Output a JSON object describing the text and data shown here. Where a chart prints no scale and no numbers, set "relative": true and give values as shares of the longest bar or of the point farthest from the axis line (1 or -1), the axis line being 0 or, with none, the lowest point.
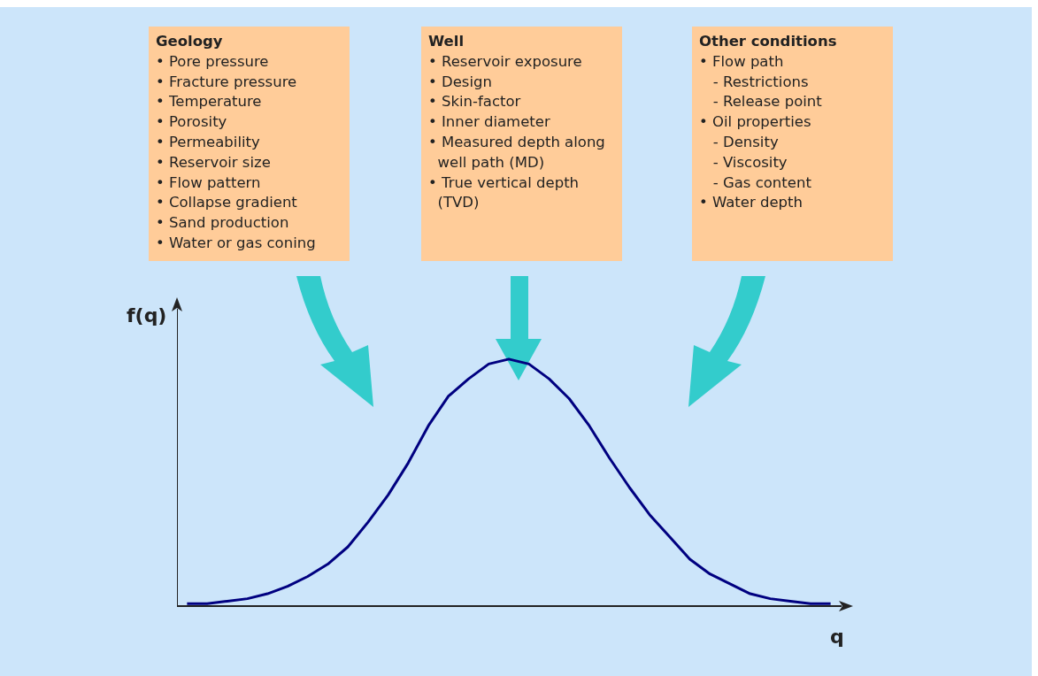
{
  "chart_data": {
    "type": "line",
    "relative": true,
    "xlabel": "q",
    "ylabel": "f(q)",
    "grid": false,
    "legend": false,
    "categories": [
      null,
      null,
      null,
      null,
      null,
      null,
      null,
      null,
      null,
      null,
      null,
      null,
      null,
      null,
      null,
      null,
      null,
      null,
      null,
      null,
      null,
      null,
      null,
      null,
      null,
      null,
      null,
      null,
      null,
      null,
      null,
      null,
      null
    ],
    "series": [
      {
        "color": "#000080",
        "values": [
          0.01,
          0.01,
          0.02,
          0.03,
          0.05,
          0.08,
          0.12,
          0.17,
          0.24,
          0.34,
          0.45,
          0.58,
          0.73,
          0.85,
          0.92,
          0.98,
          1,
          0.98,
          0.92,
          0.84,
          0.73,
          0.6,
          0.48,
          0.37,
          0.28,
          0.19,
          0.13,
          0.09,
          0.05,
          0.03,
          0.02,
          0.01,
          0.01
        ]
      }
    ],
    "annotations": [
      "Geology\n• Pore pressure\n• Fracture pressure\n• Temperature\n• Porosity\n• Permeability\n• Reservoir size\n• Flow pattern\n• Collapse gradient\n• Sand production\n• Water or gas coning",
      "Well\n• Reservoir exposure\n• Design\n• Skin-factor\n• Inner diameter\n• Measured depth along\n  well path (MD)\n• True vertical depth\n  (TVD)",
      "Other conditions\n• Flow path\n   - Restrictions\n   - Release point\n• Oil properties\n   - Density\n   - Viscosity\n   - Gas content\n• Water depth"
    ]
  }
}
